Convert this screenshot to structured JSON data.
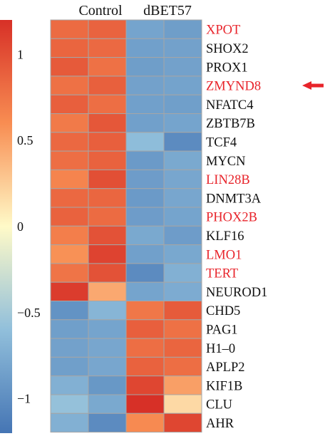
{
  "chart_data": {
    "type": "heatmap",
    "column_groups": [
      "Control",
      "dBET57"
    ],
    "columns": 4,
    "colorbar_ticks": [
      {
        "value": 1,
        "label": "1"
      },
      {
        "value": 0.5,
        "label": "0.5"
      },
      {
        "value": 0,
        "label": "0"
      },
      {
        "value": -0.5,
        "label": "−0.5"
      },
      {
        "value": -1,
        "label": "−1"
      }
    ],
    "colorbar_range": [
      -1.2,
      1.2
    ],
    "rows": [
      {
        "gene": "XPOT",
        "highlight": true,
        "values": [
          0.82,
          0.87,
          -0.82,
          -0.87
        ]
      },
      {
        "gene": "SHOX2",
        "highlight": false,
        "values": [
          0.86,
          0.83,
          -0.85,
          -0.84
        ]
      },
      {
        "gene": "PROX1",
        "highlight": false,
        "values": [
          0.93,
          0.78,
          -0.87,
          -0.84
        ]
      },
      {
        "gene": "ZMYND8",
        "highlight": true,
        "values": [
          0.78,
          0.89,
          -0.84,
          -0.83
        ]
      },
      {
        "gene": "NFATC4",
        "highlight": false,
        "values": [
          0.9,
          0.8,
          -0.85,
          -0.86
        ]
      },
      {
        "gene": "ZBTB7B",
        "highlight": false,
        "values": [
          0.72,
          0.95,
          -0.85,
          -0.82
        ]
      },
      {
        "gene": "TCF4",
        "highlight": false,
        "values": [
          0.84,
          0.9,
          -0.62,
          -1.02
        ]
      },
      {
        "gene": "MYCN",
        "highlight": false,
        "values": [
          0.8,
          0.88,
          -0.9,
          -0.78
        ]
      },
      {
        "gene": "LIN28B",
        "highlight": true,
        "values": [
          0.66,
          1.0,
          -0.88,
          -0.8
        ]
      },
      {
        "gene": "DNMT3A",
        "highlight": false,
        "values": [
          0.84,
          0.85,
          -0.9,
          -0.8
        ]
      },
      {
        "gene": "PHOX2B",
        "highlight": true,
        "values": [
          0.88,
          0.82,
          -0.88,
          -0.82
        ]
      },
      {
        "gene": "KLF16",
        "highlight": false,
        "values": [
          0.7,
          0.98,
          -0.78,
          -0.88
        ]
      },
      {
        "gene": "LMO1",
        "highlight": true,
        "values": [
          0.58,
          1.08,
          -0.85,
          -0.79
        ]
      },
      {
        "gene": "TERT",
        "highlight": true,
        "values": [
          0.76,
          0.98,
          -1.02,
          -0.72
        ]
      },
      {
        "gene": "NEUROD1",
        "highlight": false,
        "values": [
          1.12,
          0.45,
          -0.82,
          -0.76
        ]
      },
      {
        "gene": "CHD5",
        "highlight": false,
        "values": [
          -0.96,
          -0.68,
          0.74,
          0.92
        ]
      },
      {
        "gene": "PAG1",
        "highlight": false,
        "values": [
          -0.86,
          -0.82,
          0.9,
          0.78
        ]
      },
      {
        "gene": "H1–0",
        "highlight": false,
        "values": [
          -0.84,
          -0.8,
          0.8,
          0.86
        ]
      },
      {
        "gene": "APLP2",
        "highlight": false,
        "values": [
          -0.86,
          -0.8,
          0.88,
          0.8
        ]
      },
      {
        "gene": "KIF1B",
        "highlight": false,
        "values": [
          -0.72,
          -0.92,
          1.06,
          0.5
        ]
      },
      {
        "gene": "CLU",
        "highlight": false,
        "values": [
          -0.58,
          -0.78,
          1.22,
          0.18
        ]
      },
      {
        "gene": "AHR",
        "highlight": false,
        "values": [
          -0.72,
          -1.02,
          0.62,
          1.06
        ]
      }
    ],
    "arrow_row": "ZMYND8"
  },
  "colors": {
    "highlight_text": "#e8242b",
    "normal_text": "#111111",
    "arrow": "#e8242b",
    "grid": "#a6a6a6"
  }
}
